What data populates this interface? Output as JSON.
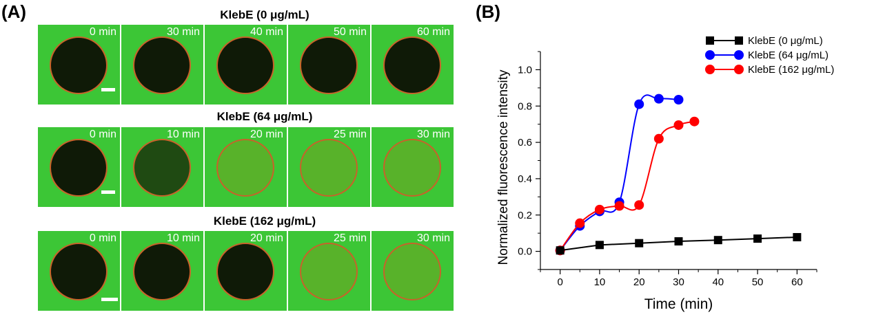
{
  "panelA": {
    "label": "(A)",
    "rows": [
      {
        "title": "KlebE (0 μg/mL)",
        "frames": [
          {
            "time": "0 min",
            "stage": "dark"
          },
          {
            "time": "30 min",
            "stage": "dark"
          },
          {
            "time": "40 min",
            "stage": "dark"
          },
          {
            "time": "50 min",
            "stage": "dark"
          },
          {
            "time": "60 min",
            "stage": "dark"
          }
        ]
      },
      {
        "title": "KlebE (64 μg/mL)",
        "frames": [
          {
            "time": "0 min",
            "stage": "dark"
          },
          {
            "time": "10 min",
            "stage": "dim"
          },
          {
            "time": "20 min",
            "stage": "filled"
          },
          {
            "time": "25 min",
            "stage": "filled"
          },
          {
            "time": "30 min",
            "stage": "filled"
          }
        ]
      },
      {
        "title": "KlebE (162 μg/mL)",
        "frames": [
          {
            "time": "0 min",
            "stage": "dark"
          },
          {
            "time": "10 min",
            "stage": "dark"
          },
          {
            "time": "20 min",
            "stage": "dark"
          },
          {
            "time": "25 min",
            "stage": "filled"
          },
          {
            "time": "30 min",
            "stage": "filled"
          }
        ]
      }
    ],
    "colors": {
      "background": "#3cc636",
      "cell_dark": "#0f1a07",
      "cell_dim": "#1f4a12",
      "cell_filled": "#58b22a",
      "membrane": "#c8622a"
    }
  },
  "panelB": {
    "label": "(B)"
  },
  "chart_data": {
    "type": "line",
    "xlabel": "Time (min)",
    "ylabel": "Normalized fluorescence intensity",
    "xlim": [
      -5,
      65
    ],
    "ylim": [
      -0.1,
      1.1
    ],
    "xticks": [
      0,
      10,
      20,
      30,
      40,
      50,
      60
    ],
    "yticks": [
      0.0,
      0.2,
      0.4,
      0.6,
      0.8,
      1.0
    ],
    "ytick_labels": [
      "0.0",
      "0.2",
      "0.4",
      "0.6",
      "0.8",
      "1.0"
    ],
    "legend_position": "top-right",
    "series": [
      {
        "name": "KlebE (0 μg/mL)",
        "color": "#000000",
        "marker": "square",
        "x": [
          0,
          10,
          20,
          30,
          40,
          50,
          60
        ],
        "y": [
          0.005,
          0.035,
          0.045,
          0.055,
          0.062,
          0.07,
          0.078
        ]
      },
      {
        "name": "KlebE (64 μg/mL)",
        "color": "#0000ff",
        "marker": "circle",
        "x": [
          0,
          5,
          10,
          15,
          20,
          25,
          30
        ],
        "y": [
          0.005,
          0.14,
          0.22,
          0.27,
          0.81,
          0.84,
          0.835
        ]
      },
      {
        "name": "KlebE (162 μg/mL)",
        "color": "#ff0000",
        "marker": "circle",
        "x": [
          0,
          5,
          10,
          15,
          20,
          25,
          30,
          34
        ],
        "y": [
          0.005,
          0.155,
          0.23,
          0.25,
          0.255,
          0.62,
          0.695,
          0.715
        ]
      }
    ]
  }
}
